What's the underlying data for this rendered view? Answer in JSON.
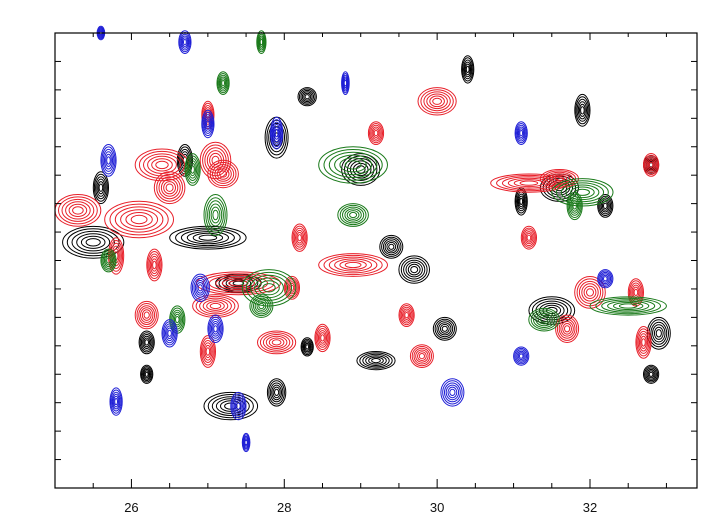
{
  "chart_data": {
    "type": "scatter",
    "title": "",
    "xlabel": "",
    "ylabel": "",
    "xlim": [
      25.0,
      33.4
    ],
    "ylim": [
      0,
      10
    ],
    "grid": false,
    "x_tick_labels": [
      "26",
      "28",
      "30",
      "32"
    ],
    "x_ticks": [
      26,
      28,
      30,
      32
    ],
    "colors": {
      "black": "#000000",
      "red": "#e8202a",
      "green": "#1a7a1a",
      "blue": "#1f1fd6",
      "frame": "#000000"
    },
    "series": [
      {
        "color_key": "black",
        "peaks": [
          [
            26.7,
            7.2,
            0.1,
            0.35
          ],
          [
            25.6,
            6.6,
            0.1,
            0.35
          ],
          [
            27.0,
            5.5,
            0.5,
            0.25
          ],
          [
            25.5,
            5.4,
            0.4,
            0.35
          ],
          [
            27.9,
            7.7,
            0.15,
            0.45
          ],
          [
            28.3,
            8.6,
            0.12,
            0.2
          ],
          [
            30.4,
            9.2,
            0.08,
            0.3
          ],
          [
            31.9,
            8.3,
            0.1,
            0.35
          ],
          [
            29.0,
            7.0,
            0.25,
            0.35
          ],
          [
            29.4,
            5.3,
            0.15,
            0.25
          ],
          [
            29.7,
            4.8,
            0.2,
            0.3
          ],
          [
            29.2,
            2.8,
            0.25,
            0.2
          ],
          [
            30.1,
            3.5,
            0.15,
            0.25
          ],
          [
            31.6,
            6.6,
            0.25,
            0.3
          ],
          [
            31.1,
            6.3,
            0.08,
            0.3
          ],
          [
            32.2,
            6.2,
            0.1,
            0.25
          ],
          [
            32.8,
            7.1,
            0.1,
            0.2
          ],
          [
            31.5,
            3.9,
            0.3,
            0.3
          ],
          [
            32.9,
            3.4,
            0.15,
            0.35
          ],
          [
            32.8,
            2.5,
            0.1,
            0.2
          ],
          [
            26.2,
            3.2,
            0.1,
            0.25
          ],
          [
            26.2,
            2.5,
            0.08,
            0.2
          ],
          [
            27.3,
            1.8,
            0.35,
            0.3
          ],
          [
            27.9,
            2.1,
            0.12,
            0.3
          ],
          [
            27.4,
            4.5,
            0.3,
            0.2
          ],
          [
            28.3,
            3.1,
            0.08,
            0.2
          ]
        ]
      },
      {
        "color_key": "red",
        "peaks": [
          [
            26.4,
            7.1,
            0.35,
            0.35
          ],
          [
            26.5,
            6.6,
            0.2,
            0.35
          ],
          [
            27.1,
            7.2,
            0.2,
            0.4
          ],
          [
            27.2,
            6.9,
            0.2,
            0.3
          ],
          [
            26.1,
            5.9,
            0.45,
            0.4
          ],
          [
            25.8,
            5.1,
            0.1,
            0.4
          ],
          [
            26.3,
            4.9,
            0.1,
            0.35
          ],
          [
            27.4,
            4.5,
            0.55,
            0.25
          ],
          [
            28.1,
            4.4,
            0.1,
            0.25
          ],
          [
            28.2,
            5.5,
            0.1,
            0.3
          ],
          [
            28.9,
            4.9,
            0.45,
            0.25
          ],
          [
            29.2,
            7.8,
            0.1,
            0.25
          ],
          [
            29.6,
            3.8,
            0.1,
            0.25
          ],
          [
            30.0,
            8.5,
            0.25,
            0.3
          ],
          [
            29.8,
            2.9,
            0.15,
            0.25
          ],
          [
            28.5,
            3.3,
            0.1,
            0.3
          ],
          [
            27.9,
            3.2,
            0.25,
            0.25
          ],
          [
            27.0,
            3.0,
            0.1,
            0.35
          ],
          [
            26.2,
            3.8,
            0.15,
            0.3
          ],
          [
            25.3,
            6.1,
            0.3,
            0.35
          ],
          [
            31.2,
            5.5,
            0.1,
            0.25
          ],
          [
            31.6,
            6.8,
            0.25,
            0.2
          ],
          [
            31.2,
            6.7,
            0.5,
            0.2
          ],
          [
            32.0,
            4.3,
            0.2,
            0.35
          ],
          [
            31.7,
            3.5,
            0.15,
            0.3
          ],
          [
            32.7,
            3.2,
            0.1,
            0.35
          ],
          [
            32.6,
            4.3,
            0.1,
            0.3
          ],
          [
            32.8,
            7.1,
            0.1,
            0.25
          ],
          [
            27.0,
            8.2,
            0.08,
            0.3
          ],
          [
            27.1,
            4.0,
            0.3,
            0.25
          ]
        ]
      },
      {
        "color_key": "green",
        "peaks": [
          [
            26.8,
            7.0,
            0.1,
            0.35
          ],
          [
            27.1,
            6.0,
            0.15,
            0.45
          ],
          [
            27.7,
            9.8,
            0.06,
            0.25
          ],
          [
            27.2,
            8.9,
            0.08,
            0.25
          ],
          [
            28.9,
            7.1,
            0.45,
            0.4
          ],
          [
            28.9,
            6.0,
            0.2,
            0.25
          ],
          [
            27.8,
            4.4,
            0.35,
            0.4
          ],
          [
            26.6,
            3.7,
            0.1,
            0.3
          ],
          [
            31.4,
            3.7,
            0.2,
            0.25
          ],
          [
            31.9,
            6.5,
            0.4,
            0.3
          ],
          [
            31.8,
            6.2,
            0.1,
            0.3
          ],
          [
            32.5,
            4.0,
            0.5,
            0.2
          ],
          [
            25.7,
            5.0,
            0.1,
            0.25
          ],
          [
            27.7,
            4.0,
            0.15,
            0.25
          ]
        ]
      },
      {
        "color_key": "blue",
        "peaks": [
          [
            26.7,
            9.8,
            0.08,
            0.25
          ],
          [
            25.6,
            10.0,
            0.05,
            0.15
          ],
          [
            27.0,
            8.0,
            0.08,
            0.3
          ],
          [
            25.7,
            7.2,
            0.1,
            0.35
          ],
          [
            27.9,
            7.8,
            0.08,
            0.35
          ],
          [
            28.8,
            8.9,
            0.05,
            0.25
          ],
          [
            26.9,
            4.4,
            0.12,
            0.3
          ],
          [
            26.5,
            3.4,
            0.1,
            0.3
          ],
          [
            27.1,
            3.5,
            0.1,
            0.3
          ],
          [
            25.8,
            1.9,
            0.08,
            0.3
          ],
          [
            27.4,
            1.8,
            0.1,
            0.3
          ],
          [
            27.5,
            1.0,
            0.05,
            0.2
          ],
          [
            31.1,
            7.8,
            0.08,
            0.25
          ],
          [
            31.1,
            2.9,
            0.1,
            0.2
          ],
          [
            32.2,
            4.6,
            0.1,
            0.2
          ],
          [
            30.2,
            2.1,
            0.15,
            0.3
          ]
        ]
      }
    ]
  }
}
